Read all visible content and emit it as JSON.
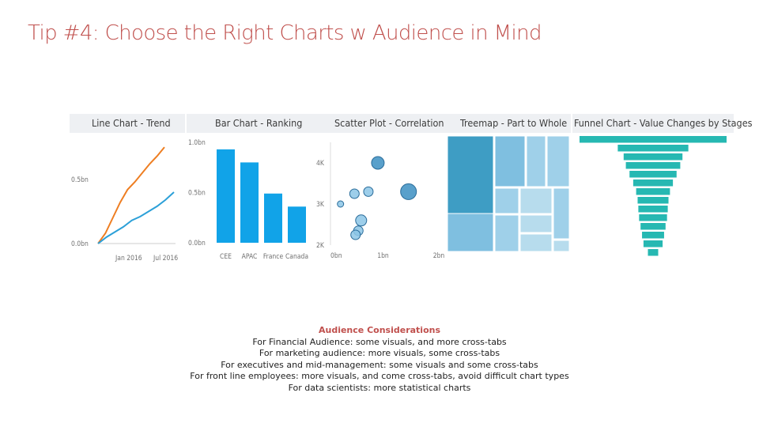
{
  "slide": {
    "title": "Tip #4: Choose the Right Charts w Audience in Mind",
    "accent_color": "#c0504d"
  },
  "chart_data": [
    {
      "type": "line",
      "title": "Line Chart - Trend",
      "x_ticks": [
        "Jan 2016",
        "Jul 2016"
      ],
      "y_ticks": [
        "0.0bn",
        "0.5bn"
      ],
      "series": [
        {
          "color": "#ee7e22",
          "values": [
            0.0,
            0.08,
            0.2,
            0.32,
            0.42,
            0.48,
            0.55,
            0.62,
            0.68,
            0.75
          ]
        },
        {
          "color": "#2ca0d8",
          "values": [
            0.0,
            0.05,
            0.09,
            0.13,
            0.18,
            0.21,
            0.25,
            0.29,
            0.34,
            0.4
          ]
        }
      ]
    },
    {
      "type": "bar",
      "title": "Bar Chart - Ranking",
      "categories": [
        "CEE",
        "APAC",
        "France",
        "Canada"
      ],
      "values": [
        0.93,
        0.8,
        0.49,
        0.36
      ],
      "y_ticks": [
        "0.0bn",
        "0.5bn",
        "1.0bn"
      ],
      "ylim": [
        0,
        1.0
      ],
      "color": "#11a3e8"
    },
    {
      "type": "scatter",
      "title": "Scatter Plot - Correlation",
      "x_ticks": [
        "0bn",
        "1bn",
        "2bn"
      ],
      "y_ticks": [
        "2K",
        "3K",
        "4K"
      ],
      "xlim": [
        0,
        2
      ],
      "ylim": [
        2,
        4.5
      ],
      "points": [
        {
          "x": 0.85,
          "y": 4.0,
          "r": 8
        },
        {
          "x": 0.68,
          "y": 3.3,
          "r": 6
        },
        {
          "x": 1.4,
          "y": 3.3,
          "r": 10
        },
        {
          "x": 0.43,
          "y": 3.25,
          "r": 6
        },
        {
          "x": 0.18,
          "y": 3.0,
          "r": 4
        },
        {
          "x": 0.55,
          "y": 2.6,
          "r": 7
        },
        {
          "x": 0.5,
          "y": 2.35,
          "r": 6
        },
        {
          "x": 0.45,
          "y": 2.25,
          "r": 6
        }
      ]
    },
    {
      "type": "treemap",
      "title": "Treemap - Part to Whole",
      "colors": [
        "#3e9dc4",
        "#7fbfe0",
        "#9fd0e9",
        "#b7dced"
      ]
    },
    {
      "type": "funnel",
      "title": "Funnel Chart - Value Changes by Stages",
      "values": [
        1.0,
        0.48,
        0.4,
        0.37,
        0.32,
        0.27,
        0.23,
        0.21,
        0.2,
        0.19,
        0.17,
        0.15,
        0.13,
        0.07
      ],
      "color": "#26b8b2"
    }
  ],
  "considerations": {
    "heading": "Audience Considerations",
    "lines": [
      "For Financial Audience: some visuals, and more cross-tabs",
      "For marketing audience: more visuals, some cross-tabs",
      "For executives and mid-management: some visuals and some cross-tabs",
      "For front line employees: more visuals, and come cross-tabs, avoid difficult chart types",
      "For data scientists: more statistical charts"
    ]
  }
}
